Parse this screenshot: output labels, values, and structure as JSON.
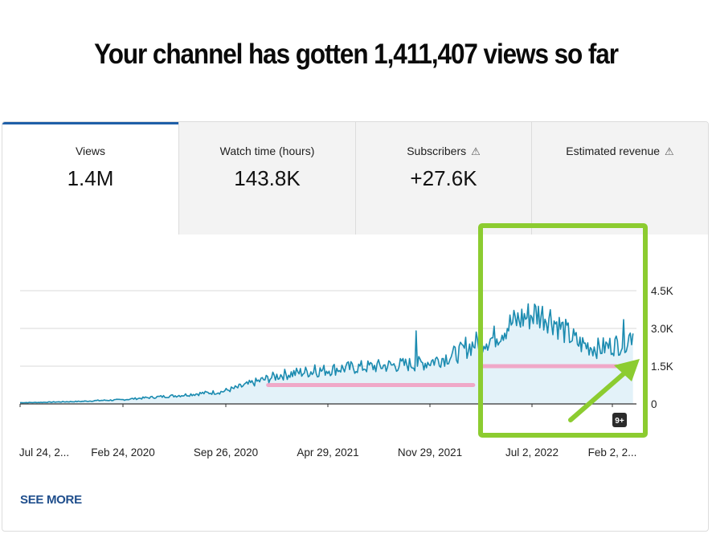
{
  "headline": "Your channel has gotten 1,411,407 views so far",
  "tabs": [
    {
      "label": "Views",
      "value": "1.4M",
      "warning": false,
      "active": true
    },
    {
      "label": "Watch time (hours)",
      "value": "143.8K",
      "warning": false,
      "active": false
    },
    {
      "label": "Subscribers",
      "value": "+27.6K",
      "warning": true,
      "active": false
    },
    {
      "label": "Estimated revenue",
      "value": "",
      "warning": true,
      "active": false
    }
  ],
  "see_more": "SEE MORE",
  "badge": "9+",
  "colors": {
    "series": "#1b8bb0",
    "area": "#e3f2f9",
    "average": "#f0a8c8",
    "highlight": "#8ccc30",
    "accent": "#1f5fa8"
  },
  "chart_data": {
    "type": "area",
    "series": [
      {
        "name": "Views",
        "points": [
          [
            "2019-07-24",
            50
          ],
          [
            "2019-09-01",
            60
          ],
          [
            "2019-10-15",
            80
          ],
          [
            "2019-12-01",
            100
          ],
          [
            "2020-01-15",
            140
          ],
          [
            "2020-02-24",
            160
          ],
          [
            "2020-04-01",
            220
          ],
          [
            "2020-05-15",
            280
          ],
          [
            "2020-07-01",
            340
          ],
          [
            "2020-08-15",
            420
          ],
          [
            "2020-09-26",
            480
          ],
          [
            "2020-11-01",
            650
          ],
          [
            "2020-12-15",
            900
          ],
          [
            "2021-02-01",
            1150
          ],
          [
            "2021-03-15",
            1250
          ],
          [
            "2021-04-29",
            1320
          ],
          [
            "2021-06-01",
            1400
          ],
          [
            "2021-07-15",
            1450
          ],
          [
            "2021-09-01",
            1500
          ],
          [
            "2021-10-15",
            1550
          ],
          [
            "2021-11-29",
            1600
          ],
          [
            "2022-01-01",
            1750
          ],
          [
            "2022-02-15",
            2000
          ],
          [
            "2022-04-01",
            2500
          ],
          [
            "2022-05-01",
            2600
          ],
          [
            "2022-06-01",
            3100
          ],
          [
            "2022-07-02",
            3400
          ],
          [
            "2022-08-01",
            3600
          ],
          [
            "2022-09-01",
            3450
          ],
          [
            "2022-10-01",
            2900
          ],
          [
            "2022-11-01",
            2400
          ],
          [
            "2022-12-15",
            2200
          ],
          [
            "2023-01-15",
            2350
          ],
          [
            "2023-02-02",
            2400
          ],
          [
            "2023-02-25",
            2800
          ]
        ]
      }
    ],
    "averages": [
      {
        "from": "2021-01-05",
        "to": "2022-03-20",
        "value": 750
      },
      {
        "from": "2022-04-10",
        "to": "2023-01-20",
        "value": 1500
      }
    ],
    "x_ticks": [
      "Jul 24, 2...",
      "Feb 24, 2020",
      "Sep 26, 2020",
      "Apr 29, 2021",
      "Nov 29, 2021",
      "Jul 2, 2022",
      "Feb 2, 2..."
    ],
    "y_ticks": [
      "4.5K",
      "3.0K",
      "1.5K",
      "0"
    ],
    "ylim": [
      0,
      4500
    ],
    "grid": true,
    "highlight_box": {
      "from": "2022-03-01",
      "to": "2023-03-01"
    }
  }
}
